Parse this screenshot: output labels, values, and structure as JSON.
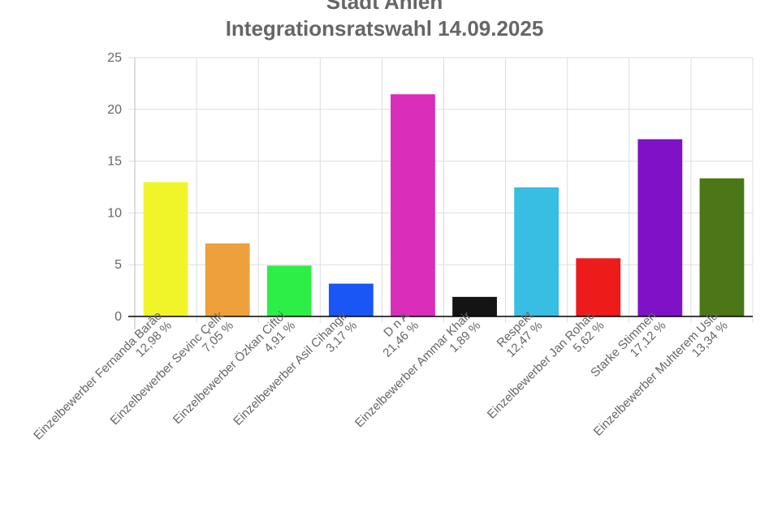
{
  "chart_data": {
    "type": "bar",
    "title": [
      "Stadt Ahlen",
      "Integrationsratswahl 14.09.2025"
    ],
    "categories": [
      [
        "Einzelbewerber Fernanda Barão",
        "12,98 %"
      ],
      [
        "Einzelbewerber Sevinc Çelik",
        "7,05 %"
      ],
      [
        "Einzelbewerber Özkan Ciftci",
        "4,91 %"
      ],
      [
        "Einzelbewerber Asil Cihangir",
        "3,17 %"
      ],
      [
        "D n A",
        "21,46 %"
      ],
      [
        "Einzelbewerber Ammar Khair",
        "1,89 %"
      ],
      [
        "Respekt",
        "12,47 %"
      ],
      [
        "Einzelbewerber Jan Rohac",
        "5,62 %"
      ],
      [
        "Starke Stimmen",
        "17,12 %"
      ],
      [
        "Einzelbewerber Muhterem Uslu",
        "13,34 %"
      ]
    ],
    "values": [
      12.98,
      7.05,
      4.91,
      3.17,
      21.46,
      1.89,
      12.47,
      5.62,
      17.12,
      13.34
    ],
    "colors": [
      "#f0f529",
      "#eda03b",
      "#2ded47",
      "#1a56f5",
      "#d92dba",
      "#141414",
      "#38bde3",
      "#ee1b1b",
      "#7f12c6",
      "#4b7716"
    ],
    "ylim": [
      0,
      25
    ],
    "yticks": [
      "0",
      "5",
      "10",
      "15",
      "20",
      "25"
    ],
    "grid": true,
    "xlabel": "",
    "ylabel": ""
  }
}
